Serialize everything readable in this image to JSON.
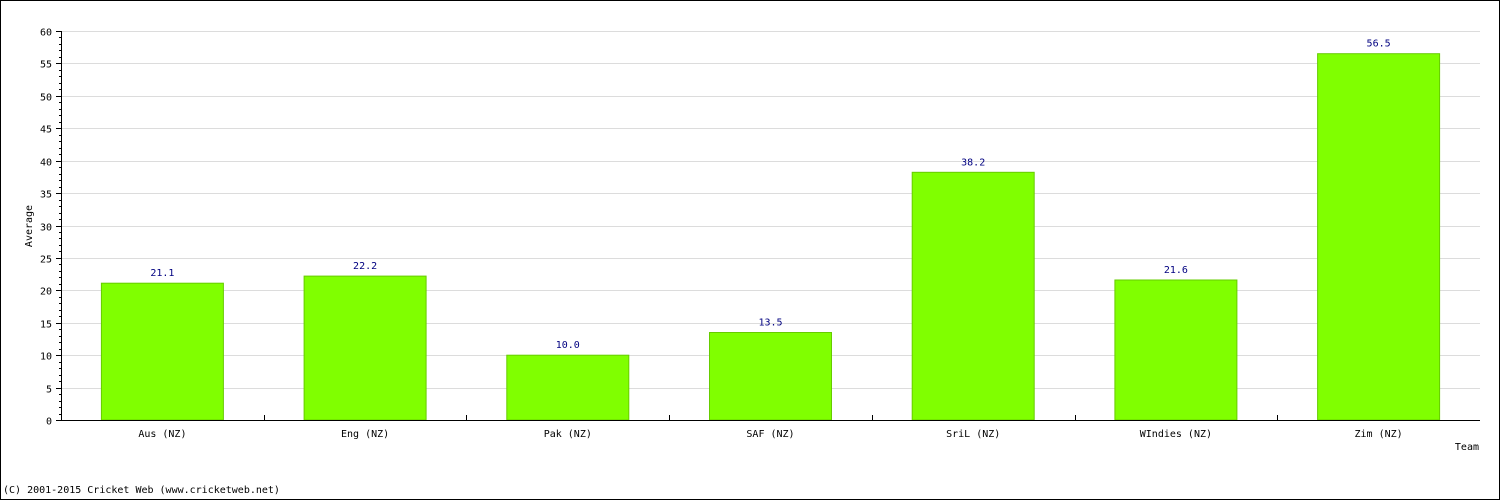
{
  "chart_data": {
    "type": "bar",
    "categories": [
      "Aus (NZ)",
      "Eng (NZ)",
      "Pak (NZ)",
      "SAF (NZ)",
      "SriL (NZ)",
      "WIndies (NZ)",
      "Zim (NZ)"
    ],
    "values": [
      21.1,
      22.2,
      10.0,
      13.5,
      38.2,
      21.6,
      56.5
    ],
    "value_labels": [
      "21.1",
      "22.2",
      "10.0",
      "13.5",
      "38.2",
      "21.6",
      "56.5"
    ],
    "xlabel": "Team",
    "ylabel": "Average",
    "ylim": [
      0,
      60
    ],
    "y_ticks": [
      0,
      5,
      10,
      15,
      20,
      25,
      30,
      35,
      40,
      45,
      50,
      55,
      60
    ],
    "grid": true,
    "bar_color": "#80ff00",
    "bar_edge_color": "#66cc00",
    "label_color": "#000080"
  },
  "footer": {
    "copyright": "(C) 2001-2015 Cricket Web (www.cricketweb.net)"
  }
}
